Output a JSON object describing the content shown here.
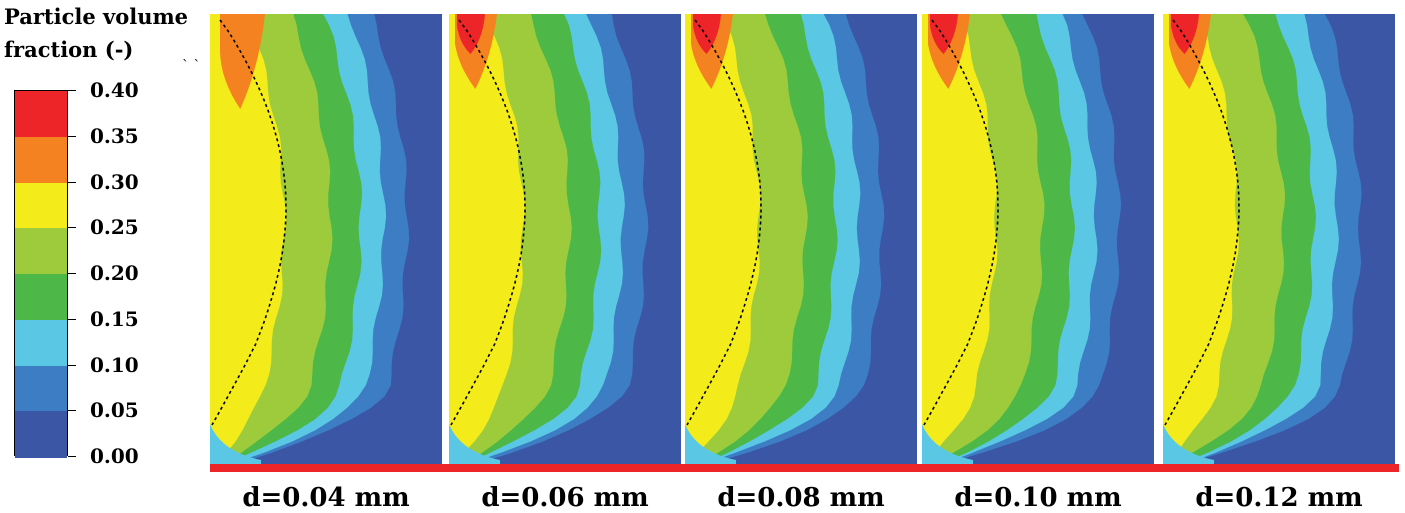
{
  "legend": {
    "title_line1": "Particle volume",
    "title_line2": "fraction (-)"
  },
  "chart_data": {
    "type": "heatmap",
    "colorbar": {
      "ticks": [
        "0.40",
        "0.35",
        "0.30",
        "0.25",
        "0.20",
        "0.15",
        "0.10",
        "0.05",
        "0.00"
      ],
      "range": [
        0,
        0.4
      ],
      "bins": [
        {
          "min": 0.0,
          "max": 0.05,
          "color": "#3a56a5"
        },
        {
          "min": 0.05,
          "max": 0.1,
          "color": "#3c7dc4"
        },
        {
          "min": 0.1,
          "max": 0.15,
          "color": "#5ac8e4"
        },
        {
          "min": 0.15,
          "max": 0.2,
          "color": "#4db848"
        },
        {
          "min": 0.2,
          "max": 0.25,
          "color": "#9dcb3c"
        },
        {
          "min": 0.25,
          "max": 0.3,
          "color": "#f3ec1a"
        },
        {
          "min": 0.3,
          "max": 0.35,
          "color": "#f58220"
        },
        {
          "min": 0.35,
          "max": 0.4,
          "color": "#ed2428"
        }
      ]
    },
    "panels": [
      {
        "label": "d=0.04 mm",
        "peak_volume_fraction": 0.33
      },
      {
        "label": "d=0.06 mm",
        "peak_volume_fraction": 0.38
      },
      {
        "label": "d=0.08 mm",
        "peak_volume_fraction": 0.38
      },
      {
        "label": "d=0.10 mm",
        "peak_volume_fraction": 0.38
      },
      {
        "label": "d=0.12 mm",
        "peak_volume_fraction": 0.38
      }
    ]
  }
}
